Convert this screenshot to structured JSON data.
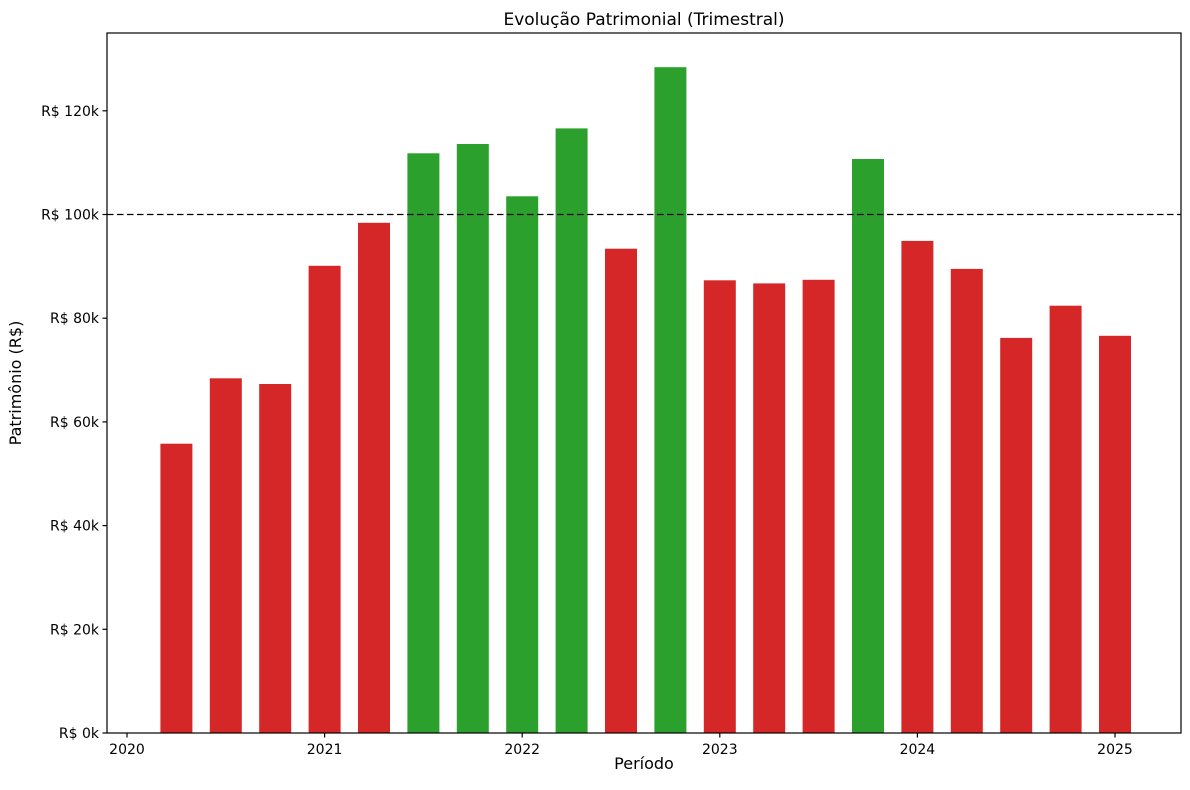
{
  "chart_data": {
    "type": "bar",
    "title": "Evolução Patrimonial (Trimestral)",
    "xlabel": "Período",
    "ylabel": "Patrimônio (R$)",
    "categories": [
      "2020-Q2",
      "2020-Q3",
      "2020-Q4",
      "2021-Q1",
      "2021-Q2",
      "2021-Q3",
      "2021-Q4",
      "2022-Q1",
      "2022-Q2",
      "2022-Q3",
      "2022-Q4",
      "2023-Q1",
      "2023-Q2",
      "2023-Q3",
      "2023-Q4",
      "2024-Q1",
      "2024-Q2",
      "2024-Q3",
      "2024-Q4",
      "2025-Q1"
    ],
    "values": [
      55800,
      68400,
      67300,
      90100,
      98400,
      111800,
      113600,
      103500,
      116600,
      93400,
      128400,
      87300,
      86700,
      87400,
      110700,
      94900,
      89500,
      76200,
      82400,
      76600
    ],
    "threshold": 100000,
    "threshold_line_style": "dashed",
    "threshold_line_color": "#000000",
    "color_above_threshold": "#2ca02c",
    "color_below_threshold": "#d62728",
    "ylim": [
      0,
      135000
    ],
    "ytick_values": [
      0,
      20000,
      40000,
      60000,
      80000,
      100000,
      120000
    ],
    "ytick_labels": [
      "R$ 0k",
      "R$ 20k",
      "R$ 40k",
      "R$ 60k",
      "R$ 80k",
      "R$ 100k",
      "R$ 120k"
    ],
    "xtick_years": [
      2020,
      2021,
      2022,
      2023,
      2024,
      2025
    ],
    "xtick_labels": [
      "2020",
      "2021",
      "2022",
      "2023",
      "2024",
      "2025"
    ],
    "grid": false,
    "legend": "none",
    "bars_per_year": 4
  }
}
